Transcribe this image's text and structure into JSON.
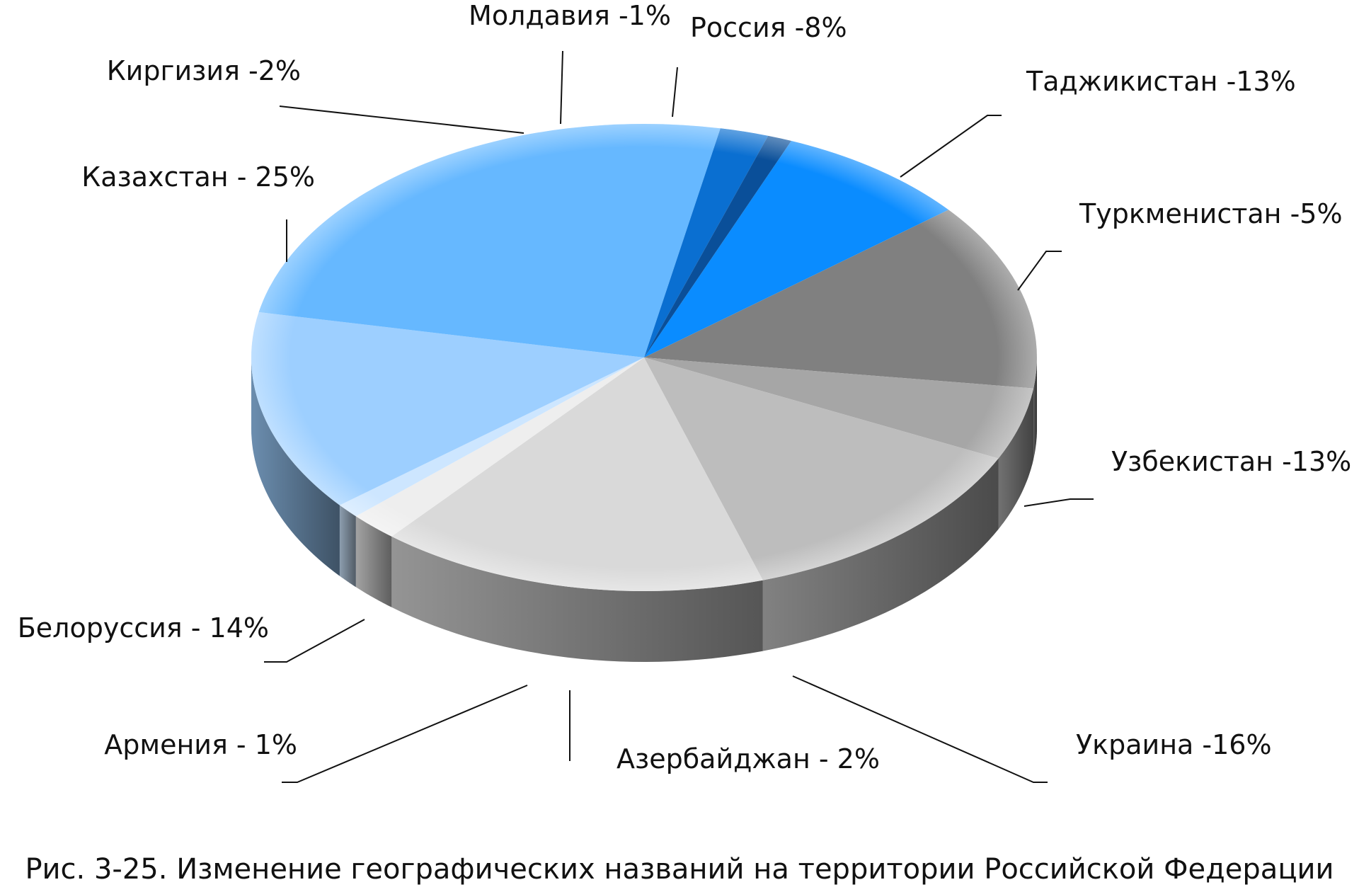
{
  "caption": "Рис. 3-25. Изменение географических названий на территории Российской Федерации",
  "chart_data": {
    "type": "pie",
    "title": "",
    "slices": [
      {
        "label": "Россия -8%",
        "value": 8,
        "color": "#0A8CFF"
      },
      {
        "label": "Таджикистан -13%",
        "value": 13,
        "color": "#808080"
      },
      {
        "label": "Туркменистан -5%",
        "value": 5,
        "color": "#A6A6A6"
      },
      {
        "label": "Узбекистан -13%",
        "value": 13,
        "color": "#BDBDBD"
      },
      {
        "label": "Украина -16%",
        "value": 16,
        "color": "#D9D9D9"
      },
      {
        "label": "Азербайджан - 2%",
        "value": 2,
        "color": "#EEEEEE"
      },
      {
        "label": "Армения - 1%",
        "value": 1,
        "color": "#CDE6FF"
      },
      {
        "label": "Белоруссия - 14%",
        "value": 14,
        "color": "#9DCFFF"
      },
      {
        "label": "Казахстан - 25%",
        "value": 25,
        "color": "#66B8FF"
      },
      {
        "label": "Киргизия -2%",
        "value": 2,
        "color": "#0A6FD1"
      },
      {
        "label": "Молдавия -1%",
        "value": 1,
        "color": "#0A4F99"
      }
    ]
  }
}
